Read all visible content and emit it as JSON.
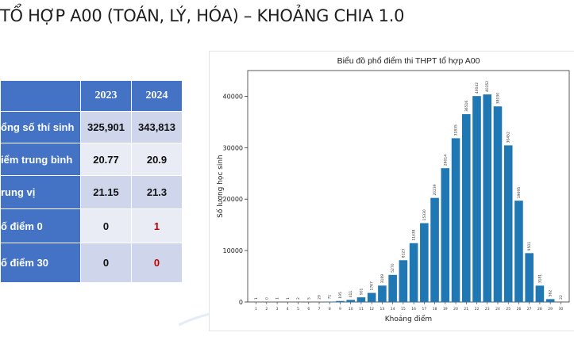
{
  "slide": {
    "title": "TỔ HỢP A00 (TOÁN, LÝ, HÓA) – KHOẢNG CHIA 1.0"
  },
  "table": {
    "headers": [
      "",
      "2023",
      "2024"
    ],
    "rows": [
      {
        "label": "ổng số thí sinh",
        "v2023": "325,901",
        "v2024": "343,813",
        "red2024": false,
        "shade": "a"
      },
      {
        "label": "iểm trung bình",
        "v2023": "20.77",
        "v2024": "20.9",
        "red2024": false,
        "shade": "b"
      },
      {
        "label": "rung vị",
        "v2023": "21.15",
        "v2024": "21.3",
        "red2024": false,
        "shade": "a"
      },
      {
        "label": "ố điểm 0",
        "v2023": "0",
        "v2024": "1",
        "red2024": true,
        "shade": "b"
      },
      {
        "label": "ố điểm 30",
        "v2023": "0",
        "v2024": "0",
        "red2024": true,
        "shade": "a"
      }
    ],
    "colors": {
      "header": "#4472c4",
      "shade_a": "#cfd5ea",
      "shade_b": "#e9ebf5",
      "highlight": "#c00000"
    }
  },
  "chart_data": {
    "type": "bar",
    "title": "Biểu đồ phổ điểm thi THPT tổ hợp A00",
    "xlabel": "Khoảng điểm",
    "ylabel": "Số lượng học sinh",
    "categories": [
      "1",
      "2",
      "3",
      "4",
      "5",
      "6",
      "7",
      "8",
      "9",
      "10",
      "11",
      "12",
      "13",
      "14",
      "15",
      "16",
      "17",
      "18",
      "19",
      "20",
      "21",
      "22",
      "23",
      "24",
      "25",
      "26",
      "27",
      "28",
      "29",
      "30"
    ],
    "values": [
      1,
      0,
      1,
      1,
      2,
      5,
      29,
      71,
      195,
      411,
      901,
      1767,
      3189,
      5270,
      8123,
      11438,
      15330,
      20239,
      26014,
      31835,
      36516,
      40042,
      40352,
      38030,
      30452,
      19695,
      9501,
      3181,
      562,
      22
    ],
    "data_labels": [
      "1",
      "0",
      "1",
      "1",
      "2",
      "5",
      "29",
      "71",
      "195",
      "411",
      "901",
      "1767",
      "3189",
      "5270",
      "8123",
      "11438",
      "15330",
      "20239",
      "26014",
      "31835",
      "36516",
      "40042",
      "40352",
      "38030",
      "30452",
      "19695",
      "9501",
      "3181",
      "562",
      "22"
    ],
    "ylim": [
      0,
      45000
    ],
    "yticks": [
      0,
      10000,
      20000,
      30000,
      40000
    ],
    "color": "#1f77b4",
    "grid": false,
    "legend": "none"
  }
}
